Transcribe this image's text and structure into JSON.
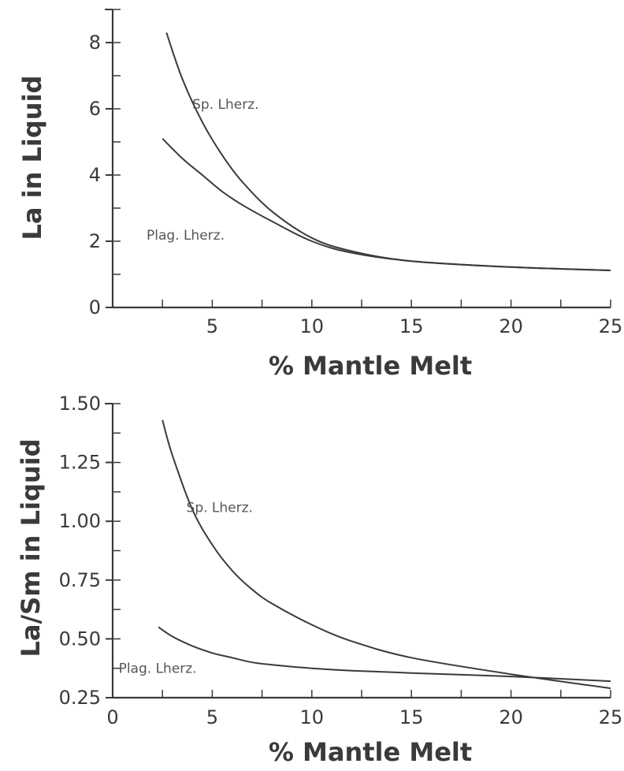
{
  "chart_data": [
    {
      "type": "line",
      "xlabel": "% Mantle Melt",
      "ylabel": "La in Liquid",
      "xlim": [
        0,
        25
      ],
      "ylim": [
        0,
        9
      ],
      "x_ticks": [
        "5",
        "10",
        "15",
        "20",
        "25"
      ],
      "y_ticks": [
        "0",
        "2",
        "4",
        "6",
        "8"
      ],
      "grid": false,
      "series": [
        {
          "name": "Sp. Lherz.",
          "x": [
            2.7,
            3.5,
            4.5,
            5.5,
            6.5,
            8,
            10,
            12,
            15,
            20,
            25
          ],
          "y": [
            8.3,
            6.9,
            5.6,
            4.6,
            3.8,
            2.9,
            2.1,
            1.7,
            1.4,
            1.22,
            1.12
          ]
        },
        {
          "name": "Plag. Lherz.",
          "x": [
            2.5,
            3.5,
            4.5,
            5.5,
            6.5,
            8,
            10,
            12,
            15,
            20,
            25
          ],
          "y": [
            5.1,
            4.5,
            4.0,
            3.5,
            3.1,
            2.6,
            2.0,
            1.65,
            1.4,
            1.22,
            1.12
          ]
        }
      ]
    },
    {
      "type": "line",
      "xlabel": "% Mantle Melt",
      "ylabel": "La/Sm in Liquid",
      "xlim": [
        0,
        25
      ],
      "ylim": [
        0.25,
        1.5
      ],
      "x_ticks": [
        "0",
        "5",
        "10",
        "15",
        "20",
        "25"
      ],
      "y_ticks": [
        "0.25",
        "0.50",
        "0.75",
        "1.00",
        "1.25",
        "1.50"
      ],
      "grid": false,
      "series": [
        {
          "name": "Sp. Lherz.",
          "x": [
            2.5,
            3,
            4,
            5,
            6,
            7,
            8,
            10,
            12,
            15,
            20,
            25
          ],
          "y": [
            1.43,
            1.28,
            1.05,
            0.9,
            0.79,
            0.71,
            0.65,
            0.56,
            0.49,
            0.42,
            0.35,
            0.29
          ]
        },
        {
          "name": "Plag. Lherz.",
          "x": [
            2.3,
            3,
            4,
            5,
            6,
            7,
            8,
            10,
            12,
            15,
            20,
            25
          ],
          "y": [
            0.55,
            0.51,
            0.47,
            0.44,
            0.42,
            0.4,
            0.39,
            0.375,
            0.365,
            0.355,
            0.34,
            0.32
          ]
        }
      ]
    }
  ]
}
